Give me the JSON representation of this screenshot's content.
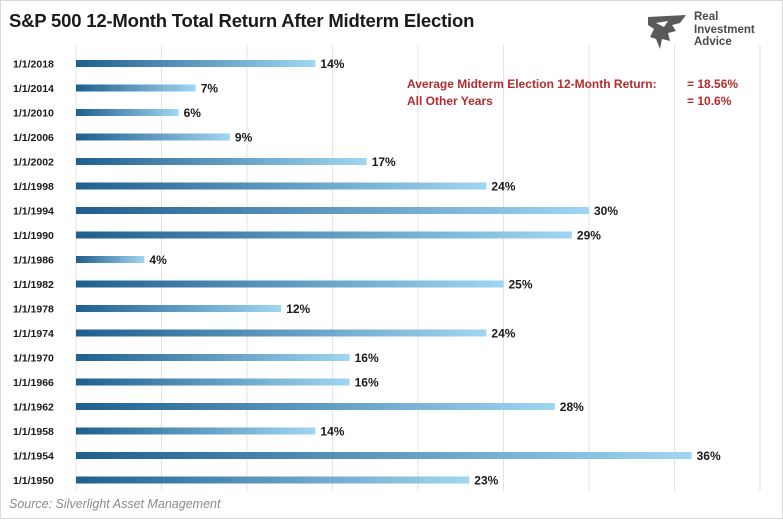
{
  "title": "S&P 500 12-Month Total Return After Midterm Election",
  "logo": {
    "text": "Real\nInvestment\nAdvice",
    "icon": "eagle-icon"
  },
  "annotations": {
    "avg_label": "Average Midterm Election 12-Month Return:",
    "avg_value": "= 18.56%",
    "other_label": "All Other Years",
    "other_value": "= 10.6%"
  },
  "source": "Source: Silverlight Asset Management",
  "colors": {
    "bar_dark": "#1f5f8f",
    "bar_light": "#9fd6f2",
    "note_red": "#b32d2e",
    "gridline": "#e3e3e3"
  },
  "chart_data": {
    "type": "bar",
    "orientation": "horizontal",
    "categories": [
      "1/1/2018",
      "1/1/2014",
      "1/1/2010",
      "1/1/2006",
      "1/1/2002",
      "1/1/1998",
      "1/1/1994",
      "1/1/1990",
      "1/1/1986",
      "1/1/1982",
      "1/1/1978",
      "1/1/1974",
      "1/1/1970",
      "1/1/1966",
      "1/1/1962",
      "1/1/1958",
      "1/1/1954",
      "1/1/1950"
    ],
    "values": [
      14,
      7,
      6,
      9,
      17,
      24,
      30,
      29,
      4,
      25,
      12,
      24,
      16,
      16,
      28,
      14,
      36,
      23
    ],
    "labels": [
      "14%",
      "7%",
      "6%",
      "9%",
      "17%",
      "24%",
      "30%",
      "29%",
      "4%",
      "25%",
      "12%",
      "24%",
      "16%",
      "16%",
      "28%",
      "14%",
      "36%",
      "23%"
    ],
    "title": "S&P 500 12-Month Total Return After Midterm Election",
    "xlabel": "",
    "ylabel": "",
    "xlim": [
      0,
      40
    ],
    "grid": true
  }
}
